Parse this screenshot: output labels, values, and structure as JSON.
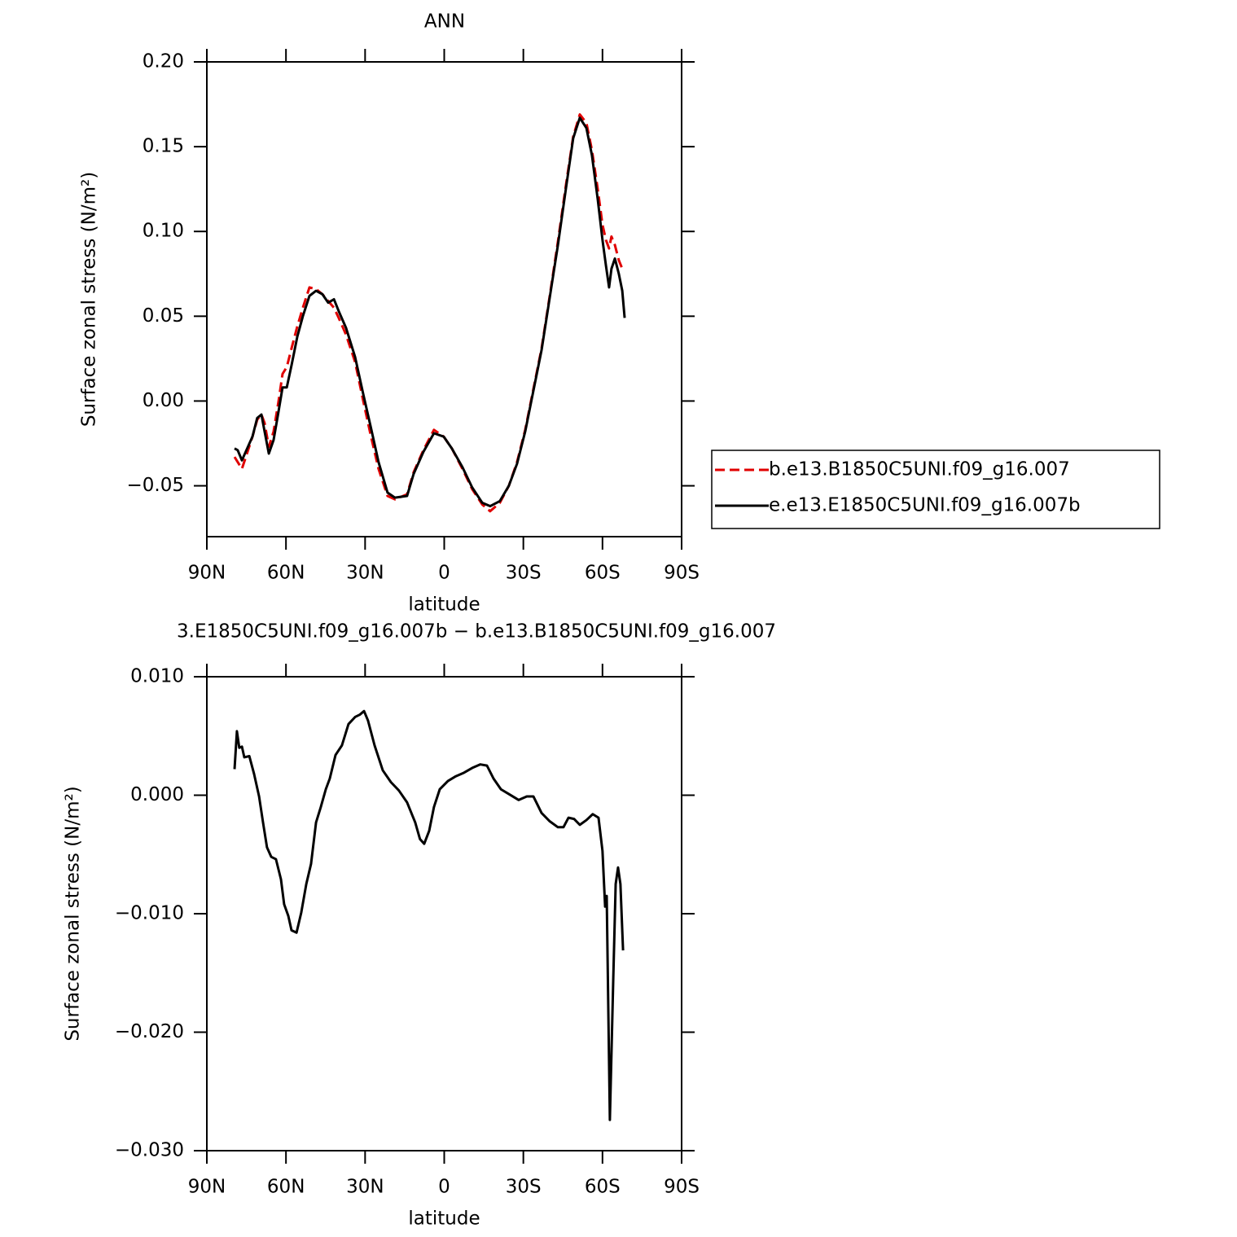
{
  "chart_data": [
    {
      "type": "line",
      "title": "ANN",
      "xlabel": "latitude",
      "ylabel": "Surface zonal stress (N/m²)",
      "xlim": [
        90,
        -90
      ],
      "xticks": [
        {
          "value": 90,
          "label": "90N"
        },
        {
          "value": 60,
          "label": "60N"
        },
        {
          "value": 30,
          "label": "30N"
        },
        0,
        {
          "value": -30,
          "label": "30S"
        },
        {
          "value": -60,
          "label": "60S"
        },
        {
          "value": -90,
          "label": "90S"
        }
      ],
      "ylim": [
        -0.08,
        0.2
      ],
      "yticks": [
        {
          "value": -0.05,
          "label": "−0.05"
        },
        {
          "value": 0,
          "label": "0.00"
        },
        {
          "value": 0.05,
          "label": "0.05"
        },
        {
          "value": 0.1,
          "label": "0.10"
        },
        {
          "value": 0.15,
          "label": "0.15"
        },
        {
          "value": 0.2,
          "label": "0.20"
        }
      ],
      "legend": "right",
      "x": [
        79.5,
        78.3,
        76.7,
        75,
        72.7,
        70.9,
        69.3,
        68.1,
        66.5,
        64.7,
        62.8,
        61.3,
        59.7,
        57.9,
        55.7,
        53.6,
        51.1,
        48.6,
        46.2,
        44,
        41.8,
        40,
        37.2,
        33.8,
        30.7,
        27.9,
        24.9,
        21.5,
        18.7,
        14.1,
        11.6,
        7.9,
        3.9,
        0.2,
        -2.9,
        -6.9,
        -10.6,
        -14.4,
        -17.4,
        -21.1,
        -24.5,
        -27.6,
        -30.7,
        -33.8,
        -36.9,
        -40,
        -43.1,
        -46.2,
        -48.9,
        -51.4,
        -53.9,
        -56,
        -58.2,
        -60,
        -61.3,
        -62.5,
        -63.4,
        -64.7,
        -66.2,
        -67.5,
        -68.4
      ],
      "series": [
        {
          "name": "b.e13.B1850C5UNI.f09_g16.007",
          "color": "#e00000",
          "linestyle": "dashed",
          "values": [
            -0.033,
            -0.036,
            -0.04,
            -0.032,
            -0.021,
            -0.011,
            -0.008,
            -0.013,
            -0.027,
            -0.018,
            0.0,
            0.016,
            0.02,
            0.031,
            0.044,
            0.055,
            0.067,
            0.066,
            0.063,
            0.059,
            0.055,
            0.049,
            0.039,
            0.023,
            0.0,
            -0.02,
            -0.04,
            -0.056,
            -0.058,
            -0.055,
            -0.042,
            -0.029,
            -0.017,
            -0.021,
            -0.028,
            -0.04,
            -0.052,
            -0.061,
            -0.065,
            -0.06,
            -0.05,
            -0.036,
            -0.017,
            0.007,
            0.031,
            0.062,
            0.094,
            0.128,
            0.156,
            0.169,
            0.164,
            0.148,
            0.125,
            0.104,
            0.095,
            0.09,
            0.097,
            0.092,
            0.083,
            0.078,
            0.077
          ]
        },
        {
          "name": "e.e13.E1850C5UNI.f09_g16.007b",
          "color": "#000000",
          "linestyle": "solid",
          "values": [
            -0.028,
            -0.029,
            -0.035,
            -0.029,
            -0.021,
            -0.01,
            -0.008,
            -0.018,
            -0.031,
            -0.023,
            -0.006,
            0.008,
            0.008,
            0.021,
            0.038,
            0.05,
            0.062,
            0.065,
            0.063,
            0.058,
            0.06,
            0.053,
            0.043,
            0.026,
            0.004,
            -0.015,
            -0.036,
            -0.054,
            -0.057,
            -0.056,
            -0.043,
            -0.03,
            -0.019,
            -0.021,
            -0.028,
            -0.039,
            -0.051,
            -0.06,
            -0.062,
            -0.059,
            -0.05,
            -0.037,
            -0.018,
            0.006,
            0.03,
            0.061,
            0.092,
            0.126,
            0.155,
            0.167,
            0.161,
            0.145,
            0.119,
            0.095,
            0.08,
            0.067,
            0.078,
            0.084,
            0.075,
            0.065,
            0.049
          ]
        }
      ]
    },
    {
      "type": "line",
      "title": "3.E1850C5UNI.f09_g16.007b − b.e13.B1850C5UNI.f09_g16.007",
      "xlabel": "latitude",
      "ylabel": "Surface zonal stress (N/m²)",
      "xlim": [
        90,
        -90
      ],
      "xticks": [
        {
          "value": 90,
          "label": "90N"
        },
        {
          "value": 60,
          "label": "60N"
        },
        {
          "value": 30,
          "label": "30N"
        },
        0,
        {
          "value": -30,
          "label": "30S"
        },
        {
          "value": -60,
          "label": "60S"
        },
        {
          "value": -90,
          "label": "90S"
        }
      ],
      "ylim": [
        -0.03,
        0.01
      ],
      "yticks": [
        {
          "value": -0.03,
          "label": "−0.030"
        },
        {
          "value": -0.02,
          "label": "−0.020"
        },
        {
          "value": -0.01,
          "label": "−0.010"
        },
        {
          "value": 0,
          "label": "0.000"
        },
        {
          "value": 0.01,
          "label": "0.010"
        }
      ],
      "x": [
        79.5,
        78.6,
        77.7,
        76.7,
        75.8,
        73.9,
        72.1,
        70.2,
        68.7,
        67.2,
        65.6,
        63.8,
        61.9,
        60.7,
        59.1,
        57.9,
        56,
        54.2,
        52.3,
        50.5,
        48.6,
        46.8,
        44.9,
        43.4,
        41.2,
        38.8,
        36.3,
        33.8,
        32,
        30.4,
        28.9,
        26.4,
        23.3,
        20.2,
        17.2,
        14.1,
        11,
        9.2,
        7.6,
        5.7,
        3.9,
        1.7,
        -1.4,
        -4.4,
        -7.5,
        -10.6,
        -13.7,
        -16.2,
        -18.7,
        -21.5,
        -24.5,
        -28.2,
        -31.3,
        -33.8,
        -36.9,
        -40,
        -43.1,
        -45.2,
        -47.1,
        -49.2,
        -51.4,
        -53.9,
        -56.3,
        -58.5,
        -60,
        -61,
        -61.6,
        -62.8,
        -64.1,
        -65,
        -65.9,
        -66.8,
        -67.8
      ],
      "series": [
        {
          "color": "#000000",
          "linestyle": "solid",
          "values": [
            0.0022,
            0.0054,
            0.004,
            0.0041,
            0.0032,
            0.0033,
            0.0018,
            -0.0001,
            -0.0023,
            -0.0044,
            -0.0052,
            -0.0054,
            -0.0071,
            -0.0092,
            -0.0102,
            -0.0114,
            -0.0116,
            -0.0099,
            -0.0075,
            -0.0058,
            -0.0023,
            -0.001,
            0.0005,
            0.0014,
            0.0034,
            0.0042,
            0.006,
            0.0066,
            0.0068,
            0.0071,
            0.0063,
            0.0042,
            0.0021,
            0.0011,
            0.0004,
            -0.0006,
            -0.0023,
            -0.0037,
            -0.0041,
            -0.003,
            -0.001,
            0.0005,
            0.0012,
            0.0016,
            0.0019,
            0.0023,
            0.0026,
            0.0025,
            0.0014,
            0.0005,
            0.0001,
            -0.0004,
            -0.0001,
            -0.0001,
            -0.0015,
            -0.0022,
            -0.0027,
            -0.0027,
            -0.0019,
            -0.002,
            -0.0025,
            -0.0021,
            -0.0016,
            -0.0019,
            -0.0047,
            -0.0094,
            -0.0085,
            -0.0274,
            -0.0154,
            -0.0075,
            -0.0061,
            -0.0075,
            -0.0131
          ]
        }
      ]
    }
  ]
}
